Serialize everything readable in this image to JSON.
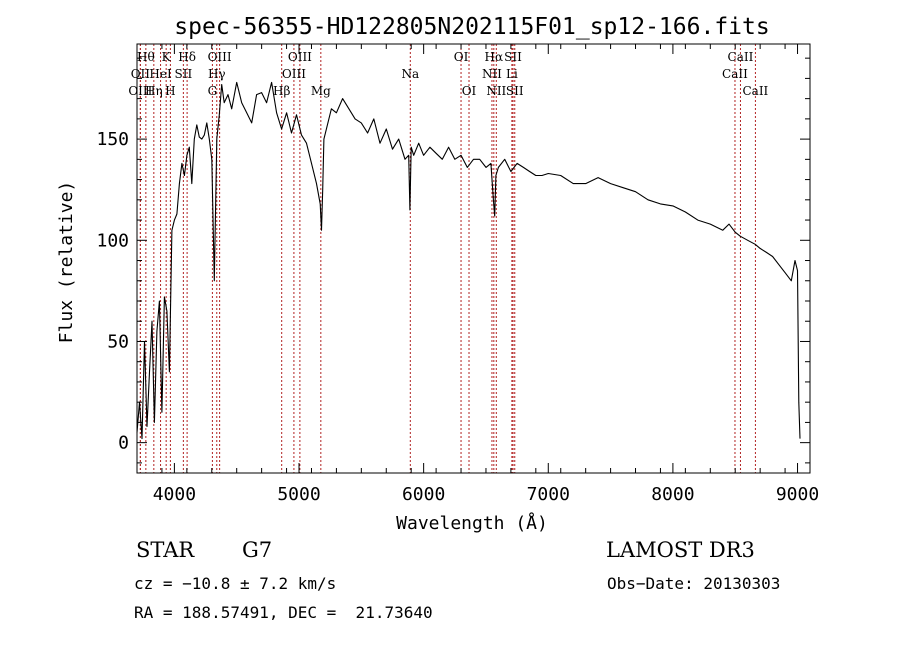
{
  "chart_data": {
    "type": "line",
    "title": "spec-56355-HD122805N202115F01_sp12-166.fits",
    "xlabel": "Wavelength (Å)",
    "ylabel": "Flux (relative)",
    "xlim": [
      3700,
      9100
    ],
    "ylim": [
      -15,
      197
    ],
    "xticks": [
      4000,
      5000,
      6000,
      7000,
      8000,
      9000
    ],
    "yticks": [
      0,
      50,
      100,
      150
    ],
    "series": [
      {
        "name": "flux",
        "x": [
          3700,
          3720,
          3740,
          3760,
          3780,
          3800,
          3820,
          3840,
          3860,
          3880,
          3900,
          3920,
          3940,
          3960,
          3980,
          4000,
          4020,
          4040,
          4060,
          4080,
          4100,
          4120,
          4140,
          4160,
          4180,
          4200,
          4220,
          4240,
          4260,
          4280,
          4300,
          4320,
          4340,
          4360,
          4380,
          4400,
          4430,
          4460,
          4500,
          4540,
          4580,
          4620,
          4660,
          4700,
          4740,
          4780,
          4820,
          4860,
          4900,
          4940,
          4980,
          5020,
          5060,
          5100,
          5140,
          5170,
          5180,
          5190,
          5200,
          5220,
          5260,
          5300,
          5350,
          5400,
          5450,
          5500,
          5550,
          5600,
          5650,
          5700,
          5750,
          5800,
          5850,
          5880,
          5890,
          5900,
          5920,
          5960,
          6000,
          6050,
          6100,
          6150,
          6200,
          6250,
          6300,
          6350,
          6400,
          6450,
          6500,
          6540,
          6560,
          6570,
          6580,
          6600,
          6650,
          6700,
          6750,
          6800,
          6850,
          6900,
          6950,
          7000,
          7100,
          7200,
          7300,
          7400,
          7500,
          7600,
          7700,
          7800,
          7900,
          8000,
          8100,
          8200,
          8300,
          8400,
          8450,
          8500,
          8540,
          8600,
          8660,
          8700,
          8750,
          8800,
          8850,
          8900,
          8950,
          8980,
          9000,
          9010,
          9020
        ],
        "values": [
          5,
          20,
          2,
          50,
          8,
          35,
          60,
          10,
          55,
          70,
          15,
          72,
          65,
          35,
          105,
          110,
          113,
          128,
          138,
          132,
          142,
          146,
          128,
          150,
          157,
          151,
          150,
          152,
          158,
          150,
          140,
          80,
          150,
          162,
          177,
          168,
          172,
          165,
          178,
          168,
          163,
          158,
          172,
          173,
          168,
          178,
          163,
          155,
          163,
          153,
          162,
          152,
          148,
          138,
          128,
          118,
          105,
          125,
          150,
          155,
          165,
          163,
          170,
          165,
          160,
          158,
          153,
          160,
          148,
          155,
          145,
          150,
          140,
          142,
          115,
          146,
          142,
          148,
          142,
          146,
          143,
          140,
          146,
          140,
          142,
          136,
          140,
          140,
          136,
          138,
          120,
          112,
          132,
          136,
          140,
          134,
          138,
          136,
          134,
          132,
          132,
          133,
          132,
          128,
          128,
          131,
          128,
          126,
          124,
          120,
          118,
          117,
          114,
          110,
          108,
          105,
          108,
          104,
          102,
          100,
          98,
          96,
          94,
          92,
          88,
          84,
          80,
          90,
          85,
          20,
          2
        ]
      }
    ],
    "line_markers": [
      {
        "label": "Hθ",
        "x": 3771,
        "row": 1
      },
      {
        "label": "OII",
        "x": 3727,
        "row": 2
      },
      {
        "label": "OIII",
        "x": 3727,
        "row": 3
      },
      {
        "label": "K",
        "x": 3934,
        "row": 1
      },
      {
        "label": "HeI",
        "x": 3889,
        "row": 2
      },
      {
        "label": "Hη",
        "x": 3835,
        "row": 3
      },
      {
        "label": "H",
        "x": 3968,
        "row": 3
      },
      {
        "label": "SII",
        "x": 4072,
        "row": 2
      },
      {
        "label": "Hδ",
        "x": 4102,
        "row": 1
      },
      {
        "label": "OIII",
        "x": 4363,
        "row": 1
      },
      {
        "label": "Hγ",
        "x": 4340,
        "row": 2
      },
      {
        "label": "G",
        "x": 4305,
        "row": 3
      },
      {
        "label": "OIII",
        "x": 5007,
        "row": 1
      },
      {
        "label": "OIII",
        "x": 4959,
        "row": 2
      },
      {
        "label": "Hβ",
        "x": 4861,
        "row": 3
      },
      {
        "label": "Mg",
        "x": 5175,
        "row": 3
      },
      {
        "label": "Na",
        "x": 5893,
        "row": 2
      },
      {
        "label": "OI",
        "x": 6300,
        "row": 1
      },
      {
        "label": "OI",
        "x": 6364,
        "row": 3
      },
      {
        "label": "Hα",
        "x": 6563,
        "row": 1
      },
      {
        "label": "NII",
        "x": 6548,
        "row": 2
      },
      {
        "label": "NII",
        "x": 6583,
        "row": 3
      },
      {
        "label": "SII",
        "x": 6717,
        "row": 1
      },
      {
        "label": "Li",
        "x": 6708,
        "row": 2
      },
      {
        "label": "SII",
        "x": 6731,
        "row": 3
      },
      {
        "label": "CaII",
        "x": 8542,
        "row": 1
      },
      {
        "label": "CaII",
        "x": 8498,
        "row": 2
      },
      {
        "label": "CaII",
        "x": 8662,
        "row": 3
      }
    ]
  },
  "info": {
    "object_class": "STAR",
    "subclass": "G7",
    "cz": "cz = −10.8 ± 7.2 km/s",
    "radec": "RA = 188.57491, DEC =  21.73640",
    "survey": "LAMOST DR3",
    "obs_date": "Obs−Date: 20130303"
  },
  "colors": {
    "spectrum": "#000000",
    "marker_line": "#b22222",
    "axes": "#000000",
    "background": "#ffffff"
  }
}
